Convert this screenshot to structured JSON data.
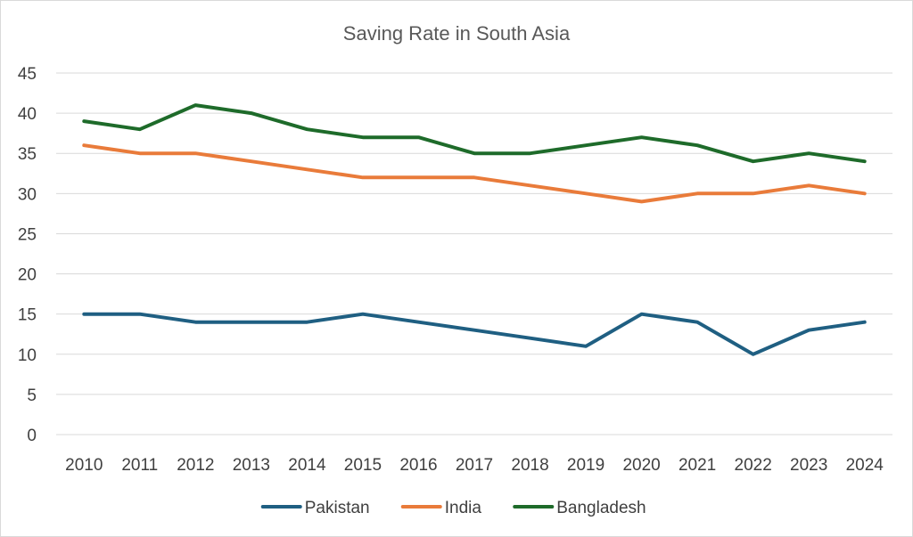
{
  "chart_data": {
    "type": "line",
    "title": "Saving Rate in South Asia",
    "xlabel": "",
    "ylabel": "",
    "ylim": [
      0,
      45
    ],
    "yticks": [
      0,
      5,
      10,
      15,
      20,
      25,
      30,
      35,
      40,
      45
    ],
    "grid": true,
    "legend_position": "bottom",
    "categories": [
      "2010",
      "2011",
      "2012",
      "2013",
      "2014",
      "2015",
      "2016",
      "2017",
      "2018",
      "2019",
      "2020",
      "2021",
      "2022",
      "2023",
      "2024"
    ],
    "series": [
      {
        "name": "Pakistan",
        "color": "#1f5f82",
        "values": [
          15,
          15,
          14,
          14,
          14,
          15,
          14,
          13,
          12,
          11,
          15,
          14,
          10,
          13,
          14
        ]
      },
      {
        "name": "India",
        "color": "#e97b3a",
        "values": [
          36,
          35,
          35,
          34,
          33,
          32,
          32,
          32,
          31,
          30,
          29,
          30,
          30,
          31,
          30
        ]
      },
      {
        "name": "Bangladesh",
        "color": "#1e6b2a",
        "values": [
          39,
          38,
          41,
          40,
          38,
          37,
          37,
          35,
          35,
          36,
          37,
          36,
          34,
          35,
          34
        ]
      }
    ]
  }
}
